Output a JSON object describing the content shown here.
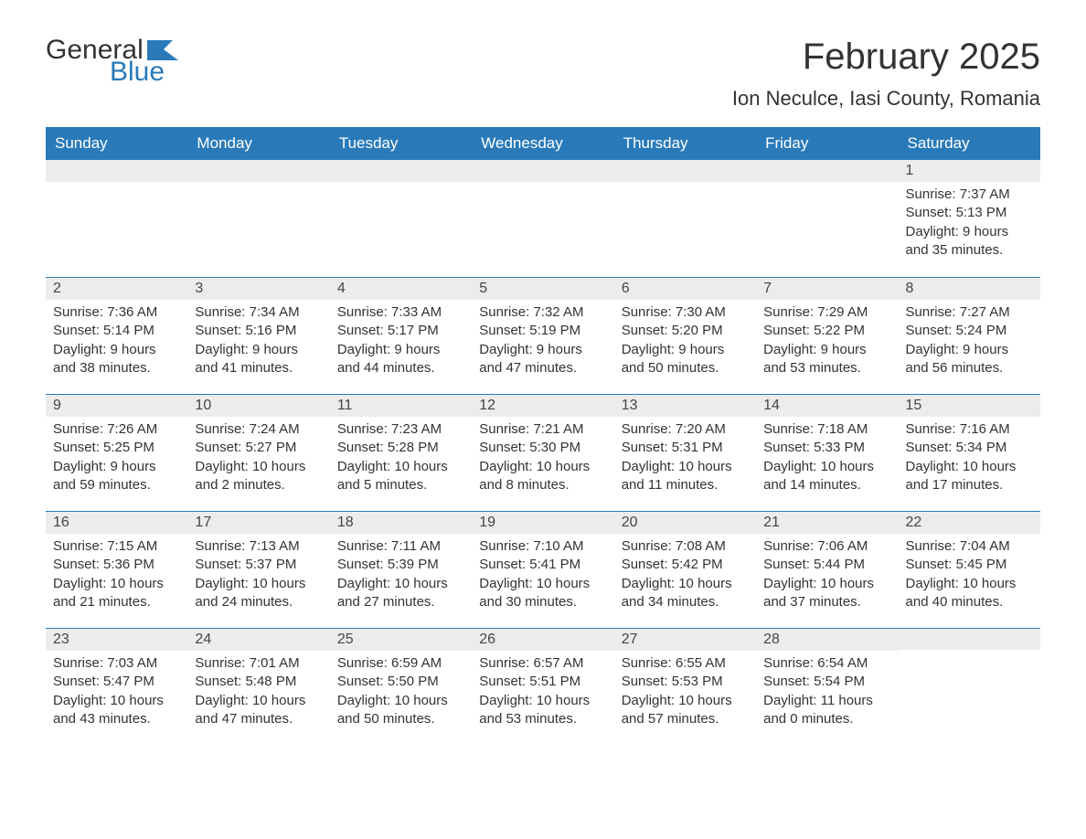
{
  "logo": {
    "word1": "General",
    "word2": "Blue",
    "word1_color": "#333333",
    "word2_color": "#2a7ab9",
    "flag_color": "#2a7ab9"
  },
  "title": "February 2025",
  "location": "Ion Neculce, Iasi County, Romania",
  "colors": {
    "header_bg": "#2a7ab9",
    "header_text": "#ffffff",
    "daynum_bg": "#ececec",
    "row_border": "#2a7ab9",
    "body_text": "#333333",
    "page_bg": "#ffffff"
  },
  "typography": {
    "title_fontsize": 40,
    "location_fontsize": 22,
    "weekday_fontsize": 17,
    "daynum_fontsize": 16,
    "body_fontsize": 15
  },
  "weekdays": [
    "Sunday",
    "Monday",
    "Tuesday",
    "Wednesday",
    "Thursday",
    "Friday",
    "Saturday"
  ],
  "weeks": [
    [
      {
        "day": "",
        "sunrise": "",
        "sunset": "",
        "daylight": ""
      },
      {
        "day": "",
        "sunrise": "",
        "sunset": "",
        "daylight": ""
      },
      {
        "day": "",
        "sunrise": "",
        "sunset": "",
        "daylight": ""
      },
      {
        "day": "",
        "sunrise": "",
        "sunset": "",
        "daylight": ""
      },
      {
        "day": "",
        "sunrise": "",
        "sunset": "",
        "daylight": ""
      },
      {
        "day": "",
        "sunrise": "",
        "sunset": "",
        "daylight": ""
      },
      {
        "day": "1",
        "sunrise": "Sunrise: 7:37 AM",
        "sunset": "Sunset: 5:13 PM",
        "daylight": "Daylight: 9 hours and 35 minutes."
      }
    ],
    [
      {
        "day": "2",
        "sunrise": "Sunrise: 7:36 AM",
        "sunset": "Sunset: 5:14 PM",
        "daylight": "Daylight: 9 hours and 38 minutes."
      },
      {
        "day": "3",
        "sunrise": "Sunrise: 7:34 AM",
        "sunset": "Sunset: 5:16 PM",
        "daylight": "Daylight: 9 hours and 41 minutes."
      },
      {
        "day": "4",
        "sunrise": "Sunrise: 7:33 AM",
        "sunset": "Sunset: 5:17 PM",
        "daylight": "Daylight: 9 hours and 44 minutes."
      },
      {
        "day": "5",
        "sunrise": "Sunrise: 7:32 AM",
        "sunset": "Sunset: 5:19 PM",
        "daylight": "Daylight: 9 hours and 47 minutes."
      },
      {
        "day": "6",
        "sunrise": "Sunrise: 7:30 AM",
        "sunset": "Sunset: 5:20 PM",
        "daylight": "Daylight: 9 hours and 50 minutes."
      },
      {
        "day": "7",
        "sunrise": "Sunrise: 7:29 AM",
        "sunset": "Sunset: 5:22 PM",
        "daylight": "Daylight: 9 hours and 53 minutes."
      },
      {
        "day": "8",
        "sunrise": "Sunrise: 7:27 AM",
        "sunset": "Sunset: 5:24 PM",
        "daylight": "Daylight: 9 hours and 56 minutes."
      }
    ],
    [
      {
        "day": "9",
        "sunrise": "Sunrise: 7:26 AM",
        "sunset": "Sunset: 5:25 PM",
        "daylight": "Daylight: 9 hours and 59 minutes."
      },
      {
        "day": "10",
        "sunrise": "Sunrise: 7:24 AM",
        "sunset": "Sunset: 5:27 PM",
        "daylight": "Daylight: 10 hours and 2 minutes."
      },
      {
        "day": "11",
        "sunrise": "Sunrise: 7:23 AM",
        "sunset": "Sunset: 5:28 PM",
        "daylight": "Daylight: 10 hours and 5 minutes."
      },
      {
        "day": "12",
        "sunrise": "Sunrise: 7:21 AM",
        "sunset": "Sunset: 5:30 PM",
        "daylight": "Daylight: 10 hours and 8 minutes."
      },
      {
        "day": "13",
        "sunrise": "Sunrise: 7:20 AM",
        "sunset": "Sunset: 5:31 PM",
        "daylight": "Daylight: 10 hours and 11 minutes."
      },
      {
        "day": "14",
        "sunrise": "Sunrise: 7:18 AM",
        "sunset": "Sunset: 5:33 PM",
        "daylight": "Daylight: 10 hours and 14 minutes."
      },
      {
        "day": "15",
        "sunrise": "Sunrise: 7:16 AM",
        "sunset": "Sunset: 5:34 PM",
        "daylight": "Daylight: 10 hours and 17 minutes."
      }
    ],
    [
      {
        "day": "16",
        "sunrise": "Sunrise: 7:15 AM",
        "sunset": "Sunset: 5:36 PM",
        "daylight": "Daylight: 10 hours and 21 minutes."
      },
      {
        "day": "17",
        "sunrise": "Sunrise: 7:13 AM",
        "sunset": "Sunset: 5:37 PM",
        "daylight": "Daylight: 10 hours and 24 minutes."
      },
      {
        "day": "18",
        "sunrise": "Sunrise: 7:11 AM",
        "sunset": "Sunset: 5:39 PM",
        "daylight": "Daylight: 10 hours and 27 minutes."
      },
      {
        "day": "19",
        "sunrise": "Sunrise: 7:10 AM",
        "sunset": "Sunset: 5:41 PM",
        "daylight": "Daylight: 10 hours and 30 minutes."
      },
      {
        "day": "20",
        "sunrise": "Sunrise: 7:08 AM",
        "sunset": "Sunset: 5:42 PM",
        "daylight": "Daylight: 10 hours and 34 minutes."
      },
      {
        "day": "21",
        "sunrise": "Sunrise: 7:06 AM",
        "sunset": "Sunset: 5:44 PM",
        "daylight": "Daylight: 10 hours and 37 minutes."
      },
      {
        "day": "22",
        "sunrise": "Sunrise: 7:04 AM",
        "sunset": "Sunset: 5:45 PM",
        "daylight": "Daylight: 10 hours and 40 minutes."
      }
    ],
    [
      {
        "day": "23",
        "sunrise": "Sunrise: 7:03 AM",
        "sunset": "Sunset: 5:47 PM",
        "daylight": "Daylight: 10 hours and 43 minutes."
      },
      {
        "day": "24",
        "sunrise": "Sunrise: 7:01 AM",
        "sunset": "Sunset: 5:48 PM",
        "daylight": "Daylight: 10 hours and 47 minutes."
      },
      {
        "day": "25",
        "sunrise": "Sunrise: 6:59 AM",
        "sunset": "Sunset: 5:50 PM",
        "daylight": "Daylight: 10 hours and 50 minutes."
      },
      {
        "day": "26",
        "sunrise": "Sunrise: 6:57 AM",
        "sunset": "Sunset: 5:51 PM",
        "daylight": "Daylight: 10 hours and 53 minutes."
      },
      {
        "day": "27",
        "sunrise": "Sunrise: 6:55 AM",
        "sunset": "Sunset: 5:53 PM",
        "daylight": "Daylight: 10 hours and 57 minutes."
      },
      {
        "day": "28",
        "sunrise": "Sunrise: 6:54 AM",
        "sunset": "Sunset: 5:54 PM",
        "daylight": "Daylight: 11 hours and 0 minutes."
      },
      {
        "day": "",
        "sunrise": "",
        "sunset": "",
        "daylight": ""
      }
    ]
  ]
}
